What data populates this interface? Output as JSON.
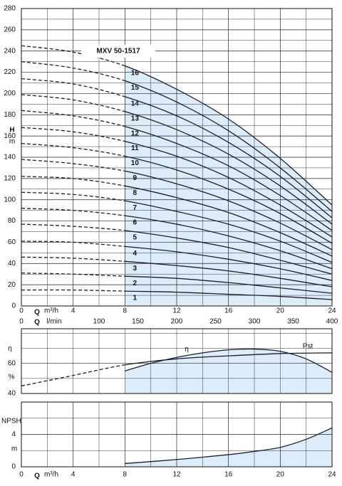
{
  "chart_data": [
    {
      "type": "line",
      "title": "MXV 50-1517",
      "y_label": "H",
      "y_unit": "m",
      "x_label": "Q",
      "x_unit": "m³/h",
      "xlim": [
        0,
        24
      ],
      "xticks": [
        0,
        4,
        8,
        12,
        16,
        20,
        24
      ],
      "minor_xticks": [
        2,
        6,
        10,
        14,
        18,
        22
      ],
      "ylim": [
        0,
        280
      ],
      "yticks": [
        0,
        20,
        40,
        60,
        80,
        100,
        120,
        140,
        160,
        180,
        200,
        220,
        240,
        260,
        280
      ],
      "minor_yticks": [
        10,
        30,
        50,
        70,
        90,
        110,
        130,
        150,
        170,
        190,
        210,
        230,
        250,
        270
      ],
      "x2_label": "Q",
      "x2_unit": "l/min",
      "x2lim": [
        0,
        400
      ],
      "x2ticks": [
        0,
        100,
        150,
        200,
        250,
        300,
        350,
        400
      ],
      "operating_range": [
        8,
        24
      ],
      "grid": true,
      "color": "#1c1c30",
      "fill_color": "#dcedf9",
      "x": [
        0,
        4,
        8,
        12,
        16,
        20,
        24
      ],
      "series": [
        {
          "name": "1",
          "values": [
            15,
            15,
            14,
            13,
            11,
            9,
            6
          ]
        },
        {
          "name": "2",
          "values": [
            31,
            30,
            28,
            26,
            22,
            17,
            12
          ]
        },
        {
          "name": "3",
          "values": [
            46,
            45,
            42,
            38,
            33,
            26,
            18
          ]
        },
        {
          "name": "4",
          "values": [
            61,
            60,
            56,
            51,
            44,
            35,
            24
          ]
        },
        {
          "name": "5",
          "values": [
            77,
            75,
            71,
            64,
            55,
            43,
            30
          ]
        },
        {
          "name": "6",
          "values": [
            92,
            90,
            85,
            77,
            66,
            52,
            35
          ]
        },
        {
          "name": "7",
          "values": [
            107,
            105,
            99,
            89,
            77,
            61,
            41
          ]
        },
        {
          "name": "8",
          "values": [
            122,
            120,
            113,
            102,
            88,
            69,
            47
          ]
        },
        {
          "name": "9",
          "values": [
            138,
            134,
            127,
            115,
            99,
            78,
            53
          ]
        },
        {
          "name": "10",
          "values": [
            153,
            149,
            141,
            128,
            110,
            87,
            59
          ]
        },
        {
          "name": "11",
          "values": [
            168,
            164,
            155,
            141,
            121,
            95,
            65
          ]
        },
        {
          "name": "12",
          "values": [
            184,
            179,
            169,
            153,
            132,
            104,
            71
          ]
        },
        {
          "name": "13",
          "values": [
            199,
            194,
            183,
            166,
            143,
            113,
            77
          ]
        },
        {
          "name": "14",
          "values": [
            214,
            209,
            197,
            179,
            154,
            122,
            83
          ]
        },
        {
          "name": "15",
          "values": [
            230,
            224,
            212,
            192,
            165,
            130,
            89
          ]
        },
        {
          "name": "16",
          "values": [
            245,
            239,
            226,
            204,
            176,
            139,
            95
          ],
          "shaded": true
        }
      ]
    },
    {
      "type": "line",
      "y_label": "η",
      "y_unit": "%",
      "xlim": [
        0,
        24
      ],
      "minor_xticks": [
        2,
        4,
        6,
        8,
        10,
        12,
        14,
        16,
        18,
        20,
        22
      ],
      "ylim": [
        40,
        83
      ],
      "yticks": [
        40,
        60
      ],
      "minor_yticks": [
        50,
        70,
        80
      ],
      "operating_range": [
        8,
        24
      ],
      "grid": true,
      "color": "#1c1c30",
      "fill_color": "#dcedf9",
      "series": [
        {
          "name": "η",
          "x": [
            8,
            10,
            12,
            14,
            16,
            18,
            20,
            22,
            24
          ],
          "values": [
            55,
            60,
            64,
            67,
            69,
            69.5,
            68,
            63,
            54
          ],
          "shaded": true
        },
        {
          "name": "Pst",
          "x": [
            0,
            4,
            8,
            12,
            16,
            20,
            24
          ],
          "values": [
            45,
            52,
            59,
            63,
            65,
            66.5,
            67
          ]
        }
      ]
    },
    {
      "type": "line",
      "y_label": "NPSH",
      "y_unit": "m",
      "x_label": "Q",
      "x_unit": "m³/h",
      "xlim": [
        0,
        24
      ],
      "xticks": [
        0,
        4,
        8,
        12,
        16,
        20,
        24
      ],
      "minor_xticks": [
        2,
        6,
        10,
        14,
        18,
        22
      ],
      "ylim": [
        0,
        8
      ],
      "yticks": [
        0,
        4
      ],
      "minor_yticks": [
        2,
        6
      ],
      "operating_range": [
        8,
        24
      ],
      "grid": true,
      "color": "#1c1c30",
      "fill_color": "#dcedf9",
      "series": [
        {
          "x": [
            8,
            12,
            16,
            18,
            20,
            22,
            24
          ],
          "values": [
            0.4,
            0.9,
            1.5,
            1.9,
            2.4,
            3.4,
            4.8
          ],
          "shaded": true
        }
      ]
    }
  ]
}
